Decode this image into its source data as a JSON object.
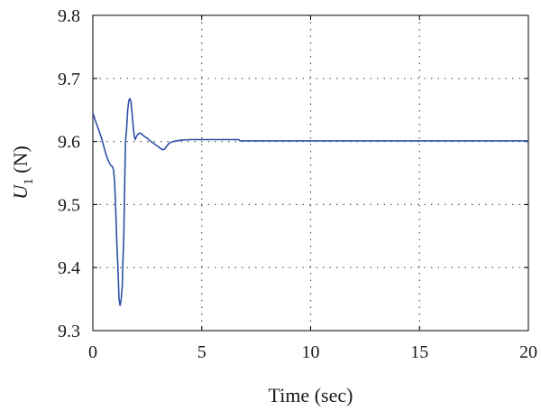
{
  "chart_data": {
    "type": "line",
    "title": "",
    "xlabel": "Time (sec)",
    "ylabel": {
      "base": "U",
      "subscript": "1",
      "unit": "(N)"
    },
    "xlim": [
      0,
      20
    ],
    "ylim": [
      9.3,
      9.8
    ],
    "xticks": [
      0,
      5,
      10,
      15,
      20
    ],
    "yticks": [
      9.3,
      9.4,
      9.5,
      9.6,
      9.7,
      9.8
    ],
    "grid": "dotted",
    "legend": "none",
    "colors": {
      "line": "#3050a8",
      "axis": "#000000",
      "grid": "#555555"
    },
    "series": [
      {
        "x": [
          0,
          0.05,
          0.12,
          0.2,
          0.3,
          0.4,
          0.5,
          0.6,
          0.7,
          0.8,
          0.9,
          0.95,
          1.0,
          1.05,
          1.1,
          1.15,
          1.2,
          1.25,
          1.3,
          1.35,
          1.38,
          1.42,
          1.47,
          1.5,
          1.55,
          1.6,
          1.65,
          1.7,
          1.75,
          1.8,
          1.85,
          1.9,
          1.95,
          2.0,
          2.1,
          2.2,
          2.3,
          2.4,
          2.5,
          2.6,
          2.7,
          2.8,
          2.9,
          3.0,
          3.1,
          3.2,
          3.3,
          3.4,
          3.5,
          3.6,
          3.7,
          3.8,
          3.9,
          4.0,
          4.5,
          5.0,
          5.5,
          6.0,
          6.5,
          6.7,
          6.75,
          7.0,
          10.0,
          15.0,
          20.0
        ],
        "y": [
          9.645,
          9.64,
          9.632,
          9.625,
          9.615,
          9.605,
          9.592,
          9.58,
          9.57,
          9.563,
          9.56,
          9.555,
          9.535,
          9.49,
          9.44,
          9.4,
          9.35,
          9.34,
          9.35,
          9.37,
          9.41,
          9.45,
          9.55,
          9.6,
          9.62,
          9.65,
          9.665,
          9.668,
          9.663,
          9.645,
          9.625,
          9.608,
          9.603,
          9.608,
          9.613,
          9.613,
          9.61,
          9.607,
          9.605,
          9.602,
          9.599,
          9.597,
          9.594,
          9.592,
          9.589,
          9.587,
          9.588,
          9.593,
          9.597,
          9.599,
          9.6,
          9.601,
          9.601,
          9.602,
          9.603,
          9.603,
          9.603,
          9.603,
          9.603,
          9.603,
          9.601,
          9.601,
          9.601,
          9.601,
          9.601
        ]
      }
    ]
  }
}
